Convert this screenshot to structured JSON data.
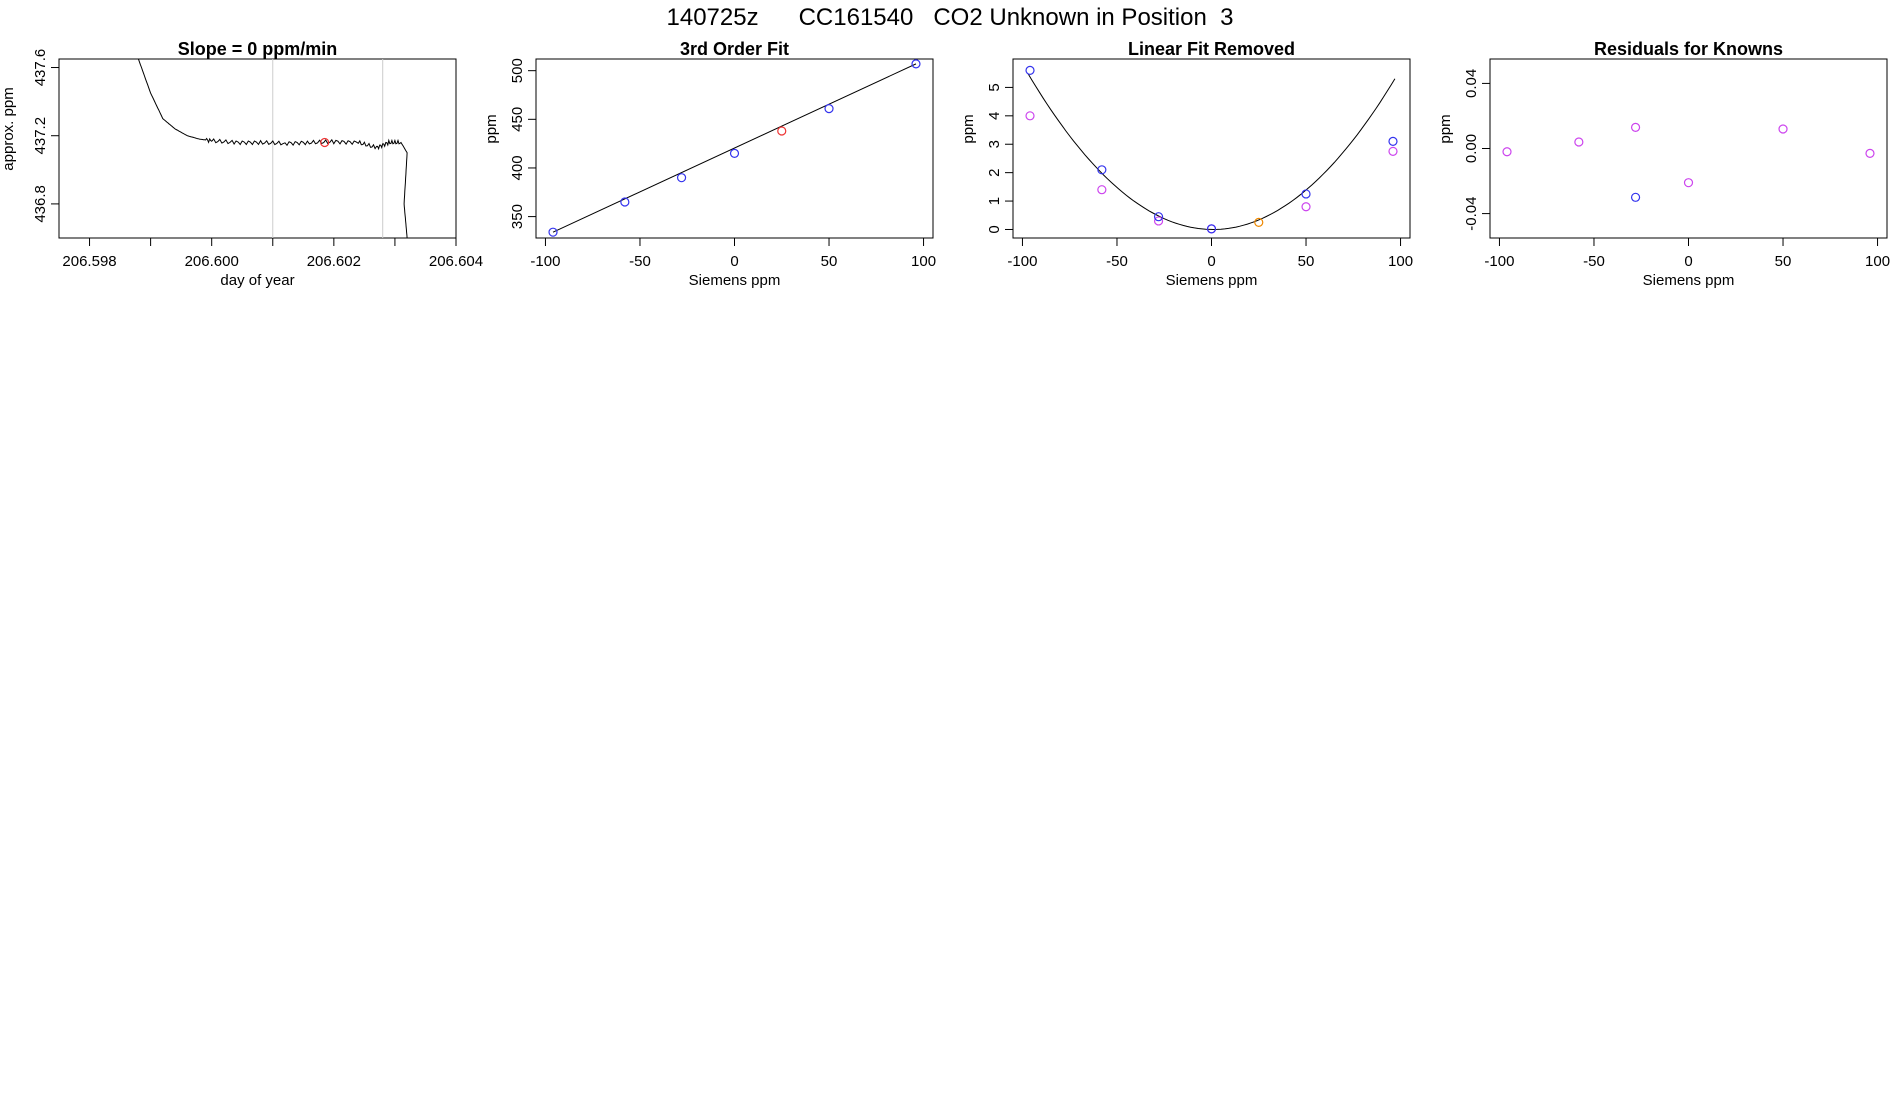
{
  "page_title": "140725z      CC161540   CO2 Unknown in Position  3",
  "colors": {
    "line": "#000000",
    "knowns": "#3333ee",
    "unknown": "#ee3333",
    "residual": "#cc44ee",
    "unknown_alt": "#ee8800",
    "gridline": "#cccccc"
  },
  "chart_data": [
    {
      "type": "line",
      "title": "Slope =  0  ppm/min",
      "xlabel": "day of year",
      "ylabel": "approx. ppm",
      "xlim": [
        206.5975,
        206.604
      ],
      "ylim": [
        436.6,
        437.65
      ],
      "xticks": [
        206.598,
        206.6,
        206.602,
        206.604
      ],
      "xtick_labels": [
        "206.598",
        "206.600",
        "206.602",
        "206.604"
      ],
      "xticks_minor": [
        206.599,
        206.601,
        206.603
      ],
      "yticks": [
        436.8,
        437.2,
        437.6
      ],
      "ytick_labels": [
        "436.8",
        "437.2",
        "437.6"
      ],
      "vlines": [
        206.601,
        206.6028
      ],
      "series": [
        {
          "x": [
            206.5988,
            206.599,
            206.5992,
            206.5994,
            206.5996,
            206.5998,
            206.6,
            206.6004,
            206.6008,
            206.6012,
            206.6016,
            206.602,
            206.6024,
            206.6027,
            206.6029,
            206.6031,
            206.6032,
            206.60315,
            206.6032
          ],
          "y": [
            437.65,
            437.45,
            437.3,
            437.24,
            437.2,
            437.18,
            437.17,
            437.16,
            437.16,
            437.155,
            437.16,
            437.165,
            437.16,
            437.13,
            437.16,
            437.16,
            437.1,
            436.8,
            436.6
          ]
        }
      ],
      "highlight": {
        "x": 206.60185,
        "y": 437.16
      }
    },
    {
      "type": "scatter",
      "title": "3rd Order Fit",
      "xlabel": "Siemens ppm",
      "ylabel": "ppm",
      "xlim": [
        -105,
        105
      ],
      "ylim": [
        328,
        512
      ],
      "xticks": [
        -100,
        -50,
        0,
        50,
        100
      ],
      "xtick_labels": [
        "-100",
        "-50",
        "0",
        "50",
        "100"
      ],
      "yticks": [
        350,
        400,
        450,
        500
      ],
      "ytick_labels": [
        "350",
        "400",
        "450",
        "500"
      ],
      "fit_line": {
        "x": [
          -96,
          96
        ],
        "y": [
          334,
          507
        ]
      },
      "knowns": {
        "x": [
          -96,
          -58,
          -28,
          0,
          50,
          96
        ],
        "y": [
          334,
          365,
          390,
          415,
          461,
          507
        ]
      },
      "unknown": {
        "x": 25,
        "y": 438
      }
    },
    {
      "type": "scatter",
      "title": "Linear Fit Removed",
      "xlabel": "Siemens ppm",
      "ylabel": "ppm",
      "xlim": [
        -105,
        105
      ],
      "ylim": [
        -0.3,
        6
      ],
      "xticks": [
        -100,
        -50,
        0,
        50,
        100
      ],
      "xtick_labels": [
        "-100",
        "-50",
        "0",
        "50",
        "100"
      ],
      "yticks": [
        0,
        1,
        2,
        3,
        4,
        5
      ],
      "ytick_labels": [
        "0",
        "1",
        "2",
        "3",
        "4",
        "5"
      ],
      "fit_curve": {
        "a": 0.000573,
        "b": -0.0009
      },
      "knowns": {
        "x": [
          -96,
          -58,
          -28,
          0,
          50,
          96
        ],
        "y": [
          5.6,
          2.1,
          0.45,
          0.02,
          1.25,
          3.1
        ]
      },
      "residual_points": {
        "x": [
          -96,
          -58,
          -28,
          0,
          50,
          96
        ],
        "y": [
          4.0,
          1.4,
          0.3,
          0.02,
          0.8,
          2.75
        ]
      },
      "unknown": {
        "x": 25,
        "y": 0.25
      }
    },
    {
      "type": "scatter",
      "title": "Residuals for Knowns",
      "xlabel": "Siemens ppm",
      "ylabel": "ppm",
      "xlim": [
        -105,
        105
      ],
      "ylim": [
        -0.055,
        0.055
      ],
      "xticks": [
        -100,
        -50,
        0,
        50,
        100
      ],
      "xtick_labels": [
        "-100",
        "-50",
        "0",
        "50",
        "100"
      ],
      "yticks": [
        -0.04,
        0.0,
        0.04
      ],
      "ytick_labels": [
        "-0.04",
        "0.00",
        "0.04"
      ],
      "residual_points": {
        "x": [
          -96,
          -58,
          -28,
          0,
          50,
          96
        ],
        "y": [
          -0.002,
          0.004,
          0.013,
          -0.021,
          0.012,
          -0.003
        ]
      },
      "knowns": {
        "x": [
          -28
        ],
        "y": [
          -0.03
        ]
      }
    }
  ]
}
